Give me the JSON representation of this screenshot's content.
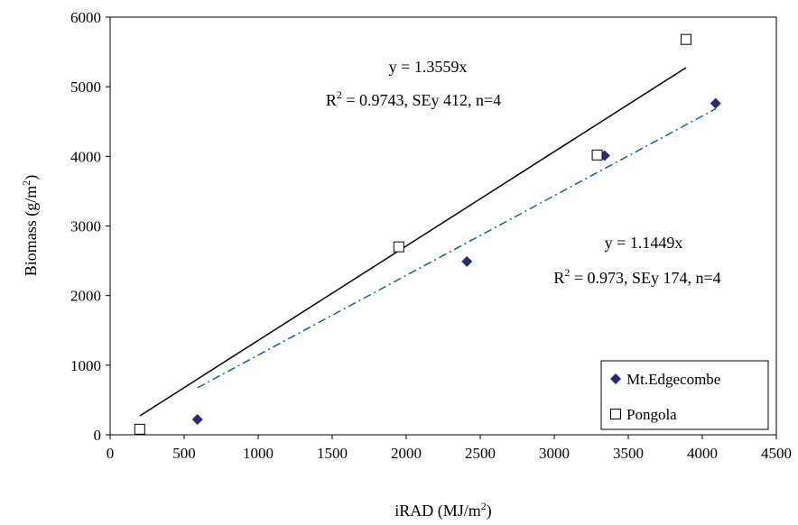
{
  "chart_data": {
    "type": "scatter",
    "xlabel": "iRAD (MJ/m",
    "xlabel_sup": "2",
    "xlabel_end": ")",
    "ylabel": "Biomass (g/m",
    "ylabel_sup": "2",
    "ylabel_end": ")",
    "xlim": [
      0,
      4500
    ],
    "ylim": [
      0,
      6000
    ],
    "x_ticks": [
      0,
      500,
      1000,
      1500,
      2000,
      2500,
      3000,
      3500,
      4000,
      4500
    ],
    "y_ticks": [
      0,
      1000,
      2000,
      3000,
      4000,
      5000,
      6000
    ],
    "x_tick_labels": [
      "0",
      "500",
      "1000",
      "1500",
      "2000",
      "2500",
      "3000",
      "3500",
      "4000",
      "4500"
    ],
    "y_tick_labels": [
      "0",
      "1000",
      "2000",
      "3000",
      "4000",
      "5000",
      "6000"
    ],
    "legend_position": "bottom-right",
    "series": [
      {
        "name": "Mt.Edgecombe",
        "marker": "diamond-filled",
        "color": "#2b2b6e",
        "x": [
          590,
          2410,
          3340,
          4090
        ],
        "y": [
          220,
          2490,
          4010,
          4760
        ]
      },
      {
        "name": "Pongola",
        "marker": "square-open",
        "color": "#000000",
        "x": [
          200,
          1950,
          3290,
          3890
        ],
        "y": [
          80,
          2700,
          4020,
          5680
        ]
      }
    ],
    "trendlines": [
      {
        "series": "Pongola",
        "slope": 1.3559,
        "x_range": [
          200,
          3890
        ],
        "style": "solid",
        "color": "#000000"
      },
      {
        "series": "Mt.Edgecombe",
        "slope": 1.1449,
        "x_range": [
          590,
          4090
        ],
        "style": "dash-dot",
        "color": "#1f5f8b"
      }
    ],
    "annotations": {
      "pongola_eq": "y = 1.3559x",
      "pongola_stats_r": "R",
      "pongola_stats_sup": "2",
      "pongola_stats_rest": " = 0.9743, SEy 412, n=4",
      "edge_eq": "y = 1.1449x",
      "edge_stats_r": "R",
      "edge_stats_sup": "2",
      "edge_stats_rest": " = 0.973, SEy 174, n=4"
    }
  }
}
